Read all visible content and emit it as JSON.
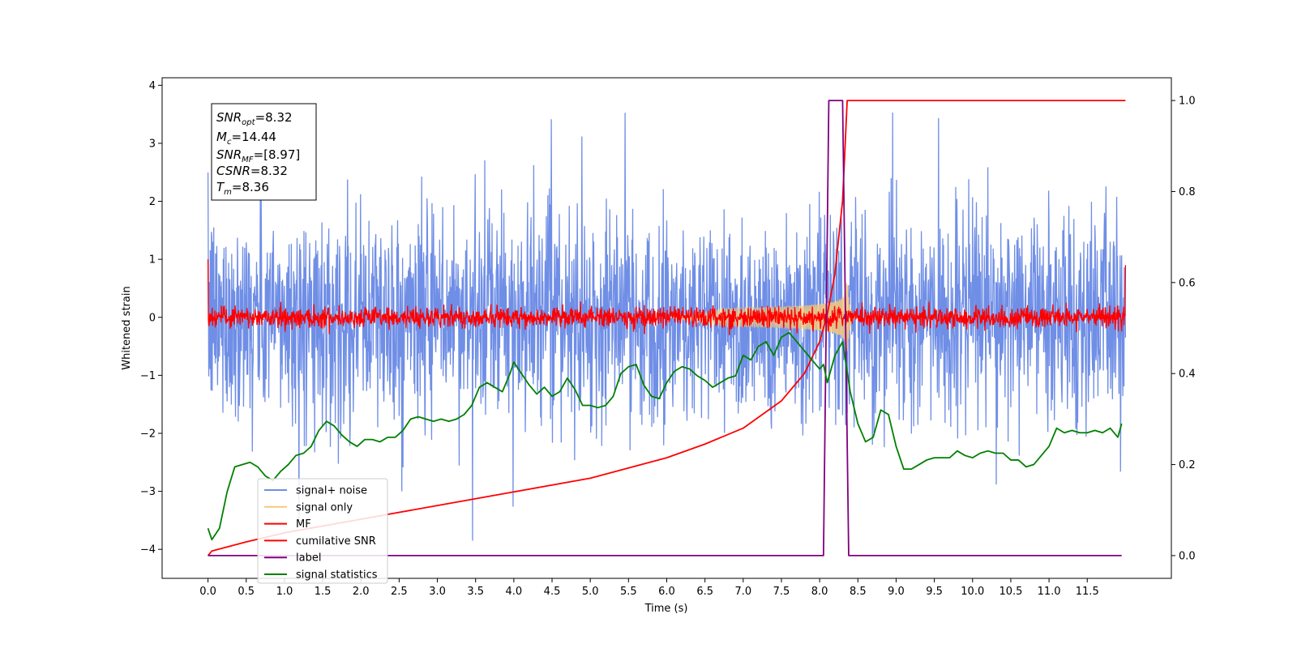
{
  "chart_data": {
    "type": "line",
    "title": "",
    "xlabel": "Time (s)",
    "ylabel": "Whitened strain",
    "xlim": [
      -0.6,
      12.6
    ],
    "ylim": [
      -4.5,
      4.13
    ],
    "ylim_right": [
      -0.05,
      1.05
    ],
    "xticks": [
      0.0,
      0.5,
      1.0,
      1.5,
      2.0,
      2.5,
      3.0,
      3.5,
      4.0,
      4.5,
      5.0,
      5.5,
      6.0,
      6.5,
      7.0,
      7.5,
      8.0,
      8.5,
      9.0,
      9.5,
      10.0,
      10.5,
      11.0,
      11.5
    ],
    "xtick_labels": [
      "0.0",
      "0.5",
      "1.0",
      "1.5",
      "2.0",
      "2.5",
      "3.0",
      "3.5",
      "4.0",
      "4.5",
      "5.0",
      "5.5",
      "6.0",
      "6.5",
      "7.0",
      "7.5",
      "8.0",
      "8.5",
      "9.0",
      "9.5",
      "10.0",
      "10.5",
      "11.0",
      "11.5"
    ],
    "yticks": [
      -4,
      -3,
      -2,
      -1,
      0,
      1,
      2,
      3,
      4
    ],
    "ytick_labels": [
      "−4",
      "−3",
      "−2",
      "−1",
      "0",
      "1",
      "2",
      "3",
      "4"
    ],
    "yticks_right": [
      0.0,
      0.2,
      0.4,
      0.6,
      0.8,
      1.0
    ],
    "ytick_labels_right": [
      "0.0",
      "0.2",
      "0.4",
      "0.6",
      "0.8",
      "1.0"
    ],
    "grid": false,
    "legend_position": "lower-left",
    "series": [
      {
        "name": "signal+ noise",
        "color": "#6f8ee6",
        "axis": "left",
        "style": "noise",
        "duration": 12.0,
        "sigma": 0.9,
        "clip_max": 3.75,
        "clip_min": -3.85
      },
      {
        "name": "signal only",
        "color": "#f5c87a",
        "axis": "left",
        "style": "chirp",
        "merger_time": 8.36,
        "peak_amplitude": 0.7
      },
      {
        "name": "MF",
        "color": "#ff0000",
        "axis": "left",
        "style": "noise",
        "duration": 12.0,
        "sigma": 0.09
      },
      {
        "name": "cumilative SNR",
        "color": "#ff0000",
        "axis": "right",
        "x": [
          0.0,
          0.05,
          0.5,
          1.0,
          2.0,
          3.0,
          4.0,
          5.0,
          6.0,
          6.5,
          7.0,
          7.5,
          7.8,
          8.0,
          8.1,
          8.2,
          8.3,
          8.36,
          12.0
        ],
        "y": [
          0.0,
          0.01,
          0.03,
          0.05,
          0.08,
          0.11,
          0.14,
          0.17,
          0.215,
          0.245,
          0.28,
          0.34,
          0.4,
          0.47,
          0.53,
          0.62,
          0.78,
          1.0,
          1.0
        ]
      },
      {
        "name": "label",
        "color": "#800080",
        "axis": "right",
        "x": [
          0.0,
          8.05,
          8.12,
          8.3,
          8.38,
          11.95
        ],
        "y": [
          0.0,
          0.0,
          1.0,
          1.0,
          0.0,
          0.0
        ]
      },
      {
        "name": "signal statistics",
        "color": "#008000",
        "axis": "right",
        "x": [
          0.0,
          0.05,
          0.15,
          0.25,
          0.35,
          0.45,
          0.55,
          0.65,
          0.75,
          0.85,
          0.95,
          1.05,
          1.15,
          1.25,
          1.35,
          1.45,
          1.55,
          1.65,
          1.75,
          1.85,
          1.95,
          2.05,
          2.15,
          2.25,
          2.35,
          2.45,
          2.55,
          2.65,
          2.75,
          2.85,
          2.95,
          3.05,
          3.15,
          3.25,
          3.35,
          3.45,
          3.55,
          3.65,
          3.75,
          3.85,
          3.95,
          4.0,
          4.1,
          4.2,
          4.3,
          4.4,
          4.5,
          4.6,
          4.7,
          4.8,
          4.9,
          5.0,
          5.1,
          5.2,
          5.3,
          5.4,
          5.5,
          5.6,
          5.7,
          5.8,
          5.9,
          6.0,
          6.1,
          6.2,
          6.3,
          6.4,
          6.5,
          6.6,
          6.7,
          6.8,
          6.9,
          7.0,
          7.1,
          7.2,
          7.3,
          7.4,
          7.5,
          7.6,
          7.7,
          7.8,
          7.9,
          8.0,
          8.05,
          8.1,
          8.2,
          8.3,
          8.4,
          8.5,
          8.6,
          8.7,
          8.8,
          8.9,
          9.0,
          9.1,
          9.2,
          9.3,
          9.4,
          9.5,
          9.6,
          9.7,
          9.8,
          9.9,
          10.0,
          10.1,
          10.2,
          10.3,
          10.4,
          10.5,
          10.6,
          10.7,
          10.8,
          10.9,
          11.0,
          11.1,
          11.2,
          11.3,
          11.4,
          11.5,
          11.6,
          11.7,
          11.8,
          11.9,
          11.95
        ],
        "y": [
          0.06,
          0.035,
          0.06,
          0.14,
          0.195,
          0.2,
          0.205,
          0.195,
          0.175,
          0.165,
          0.185,
          0.2,
          0.22,
          0.225,
          0.24,
          0.275,
          0.295,
          0.285,
          0.265,
          0.25,
          0.24,
          0.255,
          0.255,
          0.25,
          0.26,
          0.26,
          0.275,
          0.3,
          0.305,
          0.3,
          0.295,
          0.3,
          0.295,
          0.3,
          0.31,
          0.33,
          0.37,
          0.38,
          0.37,
          0.36,
          0.4,
          0.425,
          0.4,
          0.375,
          0.355,
          0.37,
          0.35,
          0.36,
          0.39,
          0.365,
          0.33,
          0.33,
          0.325,
          0.33,
          0.35,
          0.4,
          0.415,
          0.42,
          0.375,
          0.35,
          0.345,
          0.38,
          0.405,
          0.415,
          0.41,
          0.395,
          0.385,
          0.37,
          0.38,
          0.39,
          0.395,
          0.44,
          0.43,
          0.46,
          0.47,
          0.44,
          0.48,
          0.49,
          0.47,
          0.45,
          0.43,
          0.41,
          0.42,
          0.38,
          0.44,
          0.47,
          0.36,
          0.29,
          0.25,
          0.26,
          0.32,
          0.31,
          0.24,
          0.19,
          0.19,
          0.2,
          0.21,
          0.215,
          0.215,
          0.215,
          0.23,
          0.22,
          0.215,
          0.225,
          0.23,
          0.225,
          0.225,
          0.21,
          0.21,
          0.195,
          0.2,
          0.22,
          0.24,
          0.28,
          0.27,
          0.275,
          0.27,
          0.27,
          0.275,
          0.27,
          0.28,
          0.26,
          0.29
        ]
      }
    ],
    "annotation": {
      "snr_opt": {
        "base": "SNR",
        "sub": "opt",
        "value": "=8.32"
      },
      "mc": {
        "base": "M",
        "sub": "c",
        "value": "=14.44"
      },
      "snr_mf": {
        "base": "SNR",
        "sub": "MF",
        "value": "=[8.97]"
      },
      "csnr": {
        "base": "CSNR",
        "sub": "",
        "value": "=8.32"
      },
      "tm": {
        "base": "T",
        "sub": "m",
        "value": "=8.36"
      }
    }
  }
}
